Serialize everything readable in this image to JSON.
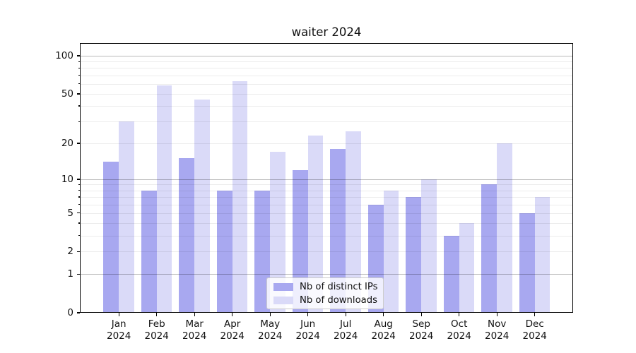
{
  "chart_data": {
    "type": "bar",
    "title": "waiter 2024",
    "categories": [
      "Jan",
      "Feb",
      "Mar",
      "Apr",
      "May",
      "Jun",
      "Jul",
      "Aug",
      "Sep",
      "Oct",
      "Nov",
      "Dec"
    ],
    "category_year": "2024",
    "series": [
      {
        "name": "Nb of distinct IPs",
        "color": "#a8a8f0",
        "values": [
          14,
          8,
          15,
          8,
          8,
          12,
          18,
          6,
          7,
          3,
          9,
          5
        ]
      },
      {
        "name": "Nb of downloads",
        "color": "#dadaf8",
        "values": [
          30,
          58,
          45,
          63,
          17,
          23,
          25,
          8,
          10,
          4,
          20,
          7
        ]
      }
    ],
    "xlabel": "",
    "ylabel": "",
    "y_scale": "log1p",
    "ylim": [
      0,
      126
    ],
    "y_ticks_labeled": [
      0,
      1,
      2,
      5,
      10,
      20,
      50,
      100
    ],
    "y_gridlines_major": [
      1,
      10,
      100
    ],
    "y_gridlines_minor": [
      2,
      3,
      4,
      5,
      6,
      7,
      8,
      9,
      20,
      30,
      40,
      50,
      60,
      70,
      80,
      90
    ],
    "y_tick_marks_minor": [
      3,
      4,
      6,
      7,
      8,
      9,
      30,
      40,
      60,
      70,
      80,
      90
    ],
    "grid": true,
    "legend_position": "lower center"
  },
  "colors": {
    "background": "#ffffff",
    "axis": "#000000",
    "text": "#111111"
  }
}
